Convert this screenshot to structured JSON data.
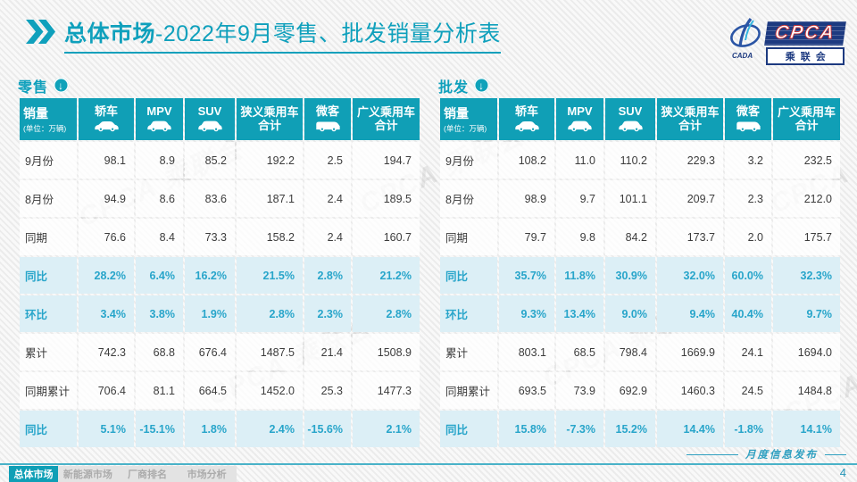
{
  "title": {
    "prefix_bold": "总体市场",
    "suffix": "-2022年9月零售、批发销量分析表"
  },
  "logo": {
    "main": "CPCA",
    "sub": "乘联会",
    "emblem_text": "CADA"
  },
  "watermark": {
    "text": "CPCA 乘联会"
  },
  "table_header": {
    "sales_label": "销量",
    "sales_unit": "(单位：万辆)",
    "columns": [
      {
        "id": "sedan",
        "label": "轿车",
        "icon": "sedan-icon"
      },
      {
        "id": "mpv",
        "label": "MPV",
        "icon": "mpv-icon"
      },
      {
        "id": "suv",
        "label": "SUV",
        "icon": "suv-icon"
      },
      {
        "id": "narrow-total",
        "label": "狭义乘用车",
        "label2": "合计"
      },
      {
        "id": "minibus",
        "label": "微客",
        "icon": "van-icon"
      },
      {
        "id": "broad-total",
        "label": "广义乘用车",
        "label2": "合计"
      }
    ]
  },
  "retail": {
    "section_label": "零售",
    "rows": [
      {
        "label": "9月份",
        "values": [
          "98.1",
          "8.9",
          "85.2",
          "192.2",
          "2.5",
          "194.7"
        ],
        "highlight": false
      },
      {
        "label": "8月份",
        "values": [
          "94.9",
          "8.6",
          "83.6",
          "187.1",
          "2.4",
          "189.5"
        ],
        "highlight": false
      },
      {
        "label": "同期",
        "values": [
          "76.6",
          "8.4",
          "73.3",
          "158.2",
          "2.4",
          "160.7"
        ],
        "highlight": false
      },
      {
        "label": "同比",
        "values": [
          "28.2%",
          "6.4%",
          "16.2%",
          "21.5%",
          "2.8%",
          "21.2%"
        ],
        "highlight": true
      },
      {
        "label": "环比",
        "values": [
          "3.4%",
          "3.8%",
          "1.9%",
          "2.8%",
          "2.3%",
          "2.8%"
        ],
        "highlight": true
      },
      {
        "label": "累计",
        "values": [
          "742.3",
          "68.8",
          "676.4",
          "1487.5",
          "21.4",
          "1508.9"
        ],
        "highlight": false
      },
      {
        "label": "同期累计",
        "values": [
          "706.4",
          "81.1",
          "664.5",
          "1452.0",
          "25.3",
          "1477.3"
        ],
        "highlight": false
      },
      {
        "label": "同比",
        "values": [
          "5.1%",
          "-15.1%",
          "1.8%",
          "2.4%",
          "-15.6%",
          "2.1%"
        ],
        "highlight": true
      }
    ]
  },
  "wholesale": {
    "section_label": "批发",
    "rows": [
      {
        "label": "9月份",
        "values": [
          "108.2",
          "11.0",
          "110.2",
          "229.3",
          "3.2",
          "232.5"
        ],
        "highlight": false
      },
      {
        "label": "8月份",
        "values": [
          "98.9",
          "9.7",
          "101.1",
          "209.7",
          "2.3",
          "212.0"
        ],
        "highlight": false
      },
      {
        "label": "同期",
        "values": [
          "79.7",
          "9.8",
          "84.2",
          "173.7",
          "2.0",
          "175.7"
        ],
        "highlight": false
      },
      {
        "label": "同比",
        "values": [
          "35.7%",
          "11.8%",
          "30.9%",
          "32.0%",
          "60.0%",
          "32.3%"
        ],
        "highlight": true
      },
      {
        "label": "环比",
        "values": [
          "9.3%",
          "13.4%",
          "9.0%",
          "9.4%",
          "40.4%",
          "9.7%"
        ],
        "highlight": true
      },
      {
        "label": "累计",
        "values": [
          "803.1",
          "68.5",
          "798.4",
          "1669.9",
          "24.1",
          "1694.0"
        ],
        "highlight": false
      },
      {
        "label": "同期累计",
        "values": [
          "693.5",
          "73.9",
          "692.9",
          "1460.3",
          "24.5",
          "1484.8"
        ],
        "highlight": false
      },
      {
        "label": "同比",
        "values": [
          "15.8%",
          "-7.3%",
          "15.2%",
          "14.4%",
          "-1.8%",
          "14.1%"
        ],
        "highlight": true
      }
    ]
  },
  "footer": {
    "tabs": [
      {
        "label": "总体市场",
        "active": true
      },
      {
        "label": "新能源市场",
        "active": false
      },
      {
        "label": "厂商排名",
        "active": false
      },
      {
        "label": "市场分析",
        "active": false
      }
    ],
    "release_note": "月度信息发布",
    "page_number": "4"
  },
  "colors": {
    "teal_header": "#109fb6",
    "accent_text": "#28a5ca",
    "highlight_row": "#dceff6",
    "logo_navy": "#1d3a80",
    "logo_red": "#d23434"
  }
}
